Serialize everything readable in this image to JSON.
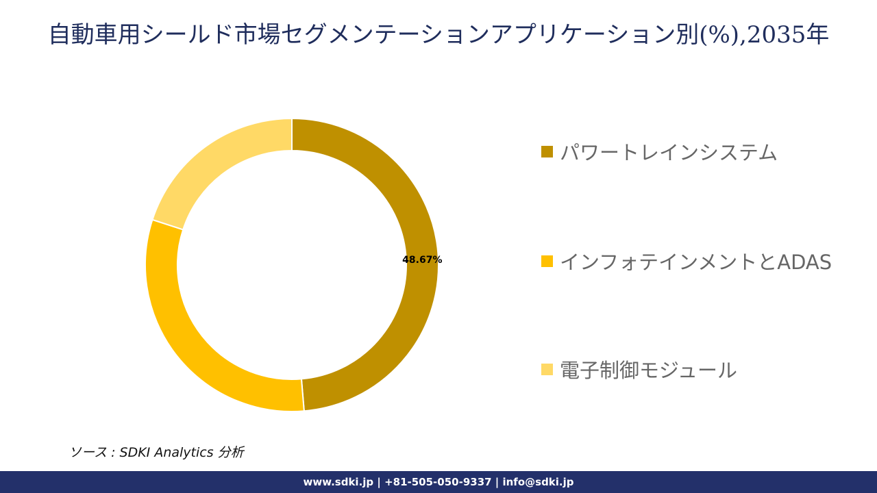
{
  "chart_data": {
    "type": "pie",
    "title": "自動車用シールド市場セグメンテーションアプリケーション別(%),2035年",
    "categories": [
      "パワートレインシステム",
      "インフォテインメントとADAS",
      "電子制御モジュール"
    ],
    "values": [
      48.67,
      31.33,
      20.0
    ],
    "colors": [
      "#bf9000",
      "#ffc000",
      "#ffd966"
    ],
    "data_labels": [
      "48.67%",
      "",
      ""
    ],
    "donut": true,
    "legend_position": "right"
  },
  "source": "ソース : SDKI Analytics 分析",
  "footer": "www.sdki.jp | +81-505-050-9337 | info@sdki.jp"
}
